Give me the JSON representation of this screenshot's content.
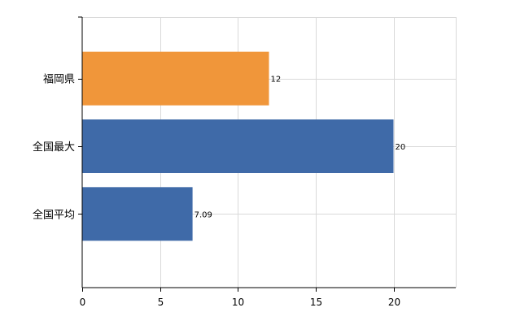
{
  "chart_data": {
    "type": "bar",
    "orientation": "horizontal",
    "title": "",
    "xlabel": "",
    "ylabel": "",
    "categories": [
      "福岡県",
      "全国最大",
      "全国平均"
    ],
    "values": [
      12,
      20,
      7.09
    ],
    "value_labels": [
      "12",
      "20",
      "7.09"
    ],
    "colors": [
      "#f0963a",
      "#3f6aa8",
      "#3f6aa8"
    ],
    "xlim": [
      0,
      24
    ],
    "xticks": [
      0,
      5,
      10,
      15,
      20
    ],
    "grid": true,
    "legend": "none"
  }
}
